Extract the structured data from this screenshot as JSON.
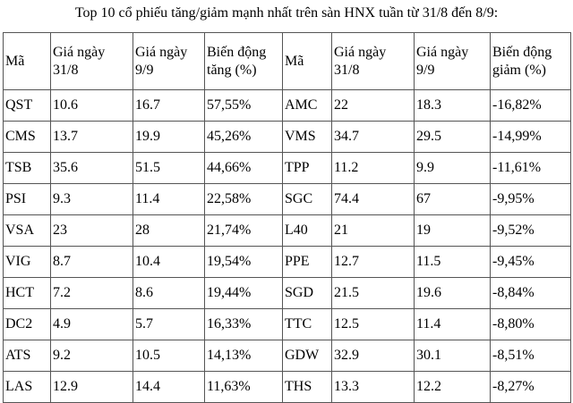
{
  "caption": "Top 10 cổ phiếu tăng/giảm mạnh nhất trên sàn HNX tuần từ 31/8 đến 8/9:",
  "headers": [
    "Mã",
    "Giá ngày 31/8",
    "Giá ngày 9/9",
    "Biến động tăng (%)",
    "Mã",
    "Giá ngày 31/8",
    "Giá ngày 9/9",
    "Biến động giảm (%)"
  ],
  "rows": [
    [
      "QST",
      "10.6",
      "16.7",
      "57,55%",
      "AMC",
      "22",
      "18.3",
      "-16,82%"
    ],
    [
      "CMS",
      "13.7",
      "19.9",
      "45,26%",
      "VMS",
      "34.7",
      "29.5",
      "-14,99%"
    ],
    [
      "TSB",
      "35.6",
      "51.5",
      "44,66%",
      "TPP",
      "11.2",
      "9.9",
      "-11,61%"
    ],
    [
      "PSI",
      "9.3",
      "11.4",
      "22,58%",
      "SGC",
      "74.4",
      "67",
      "-9,95%"
    ],
    [
      "VSA",
      "23",
      "28",
      "21,74%",
      "L40",
      "21",
      "19",
      "-9,52%"
    ],
    [
      "VIG",
      "8.7",
      "10.4",
      "19,54%",
      "PPE",
      "12.7",
      "11.5",
      "-9,45%"
    ],
    [
      "HCT",
      "7.2",
      "8.6",
      "19,44%",
      "SGD",
      "21.5",
      "19.6",
      "-8,84%"
    ],
    [
      "DC2",
      "4.9",
      "5.7",
      "16,33%",
      "TTC",
      "12.5",
      "11.4",
      "-8,80%"
    ],
    [
      "ATS",
      "9.2",
      "10.5",
      "14,13%",
      "GDW",
      "32.9",
      "30.1",
      "-8,51%"
    ],
    [
      "LAS",
      "12.9",
      "14.4",
      "11,63%",
      "THS",
      "13.3",
      "12.2",
      "-8,27%"
    ]
  ]
}
